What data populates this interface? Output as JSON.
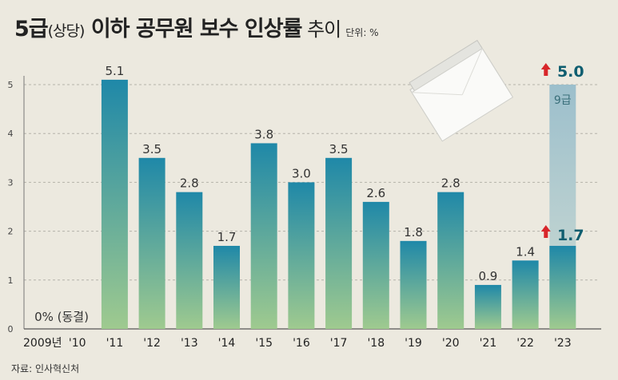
{
  "header": {
    "title_main": "5급",
    "title_sub": "(상당)",
    "title_rest": " 이하 공무원 보수 인상률",
    "title_tail": " 추이",
    "unit": "단위: %"
  },
  "source": "자료: 인사혁신처",
  "chart_data": {
    "type": "bar",
    "title": "5급(상당) 이하 공무원 보수 인상률 추이",
    "unit": "단위: %",
    "categories": [
      "2009년",
      "'10",
      "'11",
      "'12",
      "'13",
      "'14",
      "'15",
      "'16",
      "'17",
      "'18",
      "'19",
      "'20",
      "'21",
      "'22",
      "'23"
    ],
    "values": [
      0,
      0,
      5.1,
      3.5,
      2.8,
      1.7,
      3.8,
      3.0,
      3.5,
      2.6,
      1.8,
      2.8,
      0.9,
      1.4,
      1.7
    ],
    "data_labels": [
      "",
      "",
      "5.1",
      "3.5",
      "2.8",
      "1.7",
      "3.8",
      "3.0",
      "3.5",
      "2.6",
      "1.8",
      "2.8",
      "0.9",
      "1.4",
      "1.7"
    ],
    "freeze_label": "0% (동결)",
    "series": [
      {
        "name": "5급 이하",
        "values": [
          0,
          0,
          5.1,
          3.5,
          2.8,
          1.7,
          3.8,
          3.0,
          3.5,
          2.6,
          1.8,
          2.8,
          0.9,
          1.4,
          1.7
        ]
      },
      {
        "name": "9급",
        "values": [
          null,
          null,
          null,
          null,
          null,
          null,
          null,
          null,
          null,
          null,
          null,
          null,
          null,
          null,
          5.0
        ]
      }
    ],
    "highlight": {
      "category": "'23",
      "grade9_value": "5.0",
      "grade9_label": "9급",
      "value": "1.7"
    },
    "yticks": [
      0,
      1,
      2,
      3,
      4,
      5
    ],
    "ylim": [
      0,
      5.6
    ],
    "colors": {
      "bar_top": "#1f88a8",
      "bar_bottom": "#9fca8f",
      "grade9_top": "#9cbfcc",
      "grade9_bottom": "#cfdcd3",
      "arrow": "#d8262a",
      "highlight_text": "#0f5e70"
    }
  }
}
